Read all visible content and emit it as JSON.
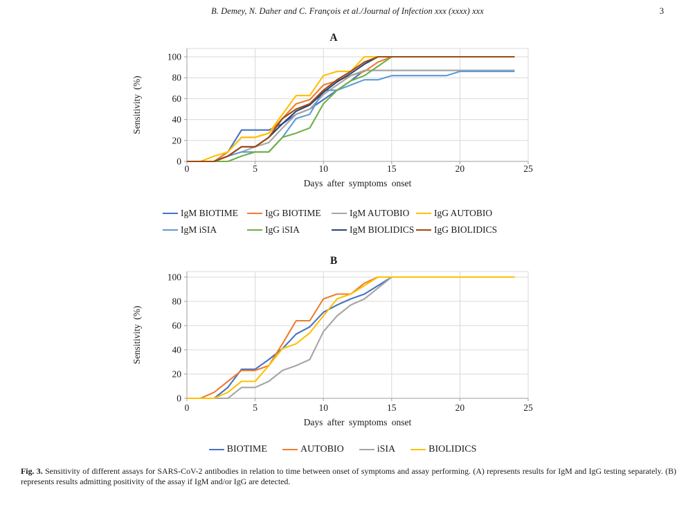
{
  "header": {
    "running_title": "B. Demey, N. Daher and C. François et al./Journal of Infection xxx (xxxx) xxx",
    "page_number": "3"
  },
  "caption": {
    "label": "Fig. 3.",
    "text": "Sensitivity of different assays for SARS-CoV-2 antibodies in relation to time between onset of symptoms and assay performing. (A) represents results for IgM and IgG testing separately. (B) represents results admitting positivity of the assay if IgM and/or IgG are detected."
  },
  "style_colors": {
    "gridline": "#D9D9D9",
    "axis": "#9E9E9E",
    "text": "#1a1a1a"
  },
  "chart_data": [
    {
      "id": "A",
      "type": "line",
      "title": "A",
      "xlabel": "Days after symptoms onset",
      "ylabel": "Sensitivity (%)",
      "xlim": [
        0,
        25
      ],
      "ylim": [
        0,
        100
      ],
      "xticks": [
        0,
        5,
        10,
        15,
        20,
        25
      ],
      "yticks": [
        0,
        20,
        40,
        60,
        80,
        100
      ],
      "grid": true,
      "legend_position": "bottom",
      "x": [
        0,
        1,
        2,
        3,
        4,
        5,
        6,
        7,
        8,
        9,
        10,
        11,
        12,
        13,
        14,
        15,
        16,
        17,
        18,
        19,
        20,
        21,
        22,
        23,
        24
      ],
      "series": [
        {
          "name": "IgM BIOTIME",
          "color": "#4472C4",
          "values": [
            0,
            0,
            0,
            9,
            30,
            30,
            30,
            36,
            45,
            50,
            59,
            68,
            77,
            87,
            87,
            87,
            87,
            87,
            87,
            87,
            87,
            87,
            87,
            87,
            87
          ]
        },
        {
          "name": "IgG BIOTIME",
          "color": "#ED7D31",
          "values": [
            0,
            0,
            0,
            9,
            23,
            23,
            27,
            41,
            55,
            59,
            73,
            77,
            82,
            86,
            95,
            100,
            100,
            100,
            100,
            100,
            100,
            100,
            100,
            100,
            100
          ]
        },
        {
          "name": "IgM AUTOBIO",
          "color": "#A5A5A5",
          "values": [
            0,
            0,
            0,
            5,
            9,
            14,
            18,
            32,
            45,
            50,
            64,
            73,
            82,
            87,
            87,
            87,
            87,
            87,
            87,
            87,
            87,
            87,
            87,
            87,
            87
          ]
        },
        {
          "name": "IgG AUTOBIO",
          "color": "#FFC000",
          "values": [
            0,
            0,
            5,
            9,
            23,
            23,
            27,
            45,
            63,
            63,
            82,
            86,
            86,
            100,
            100,
            100,
            100,
            100,
            100,
            100,
            100,
            100,
            100,
            100,
            100
          ]
        },
        {
          "name": "IgM iSIA",
          "color": "#5B9BD5",
          "values": [
            0,
            0,
            0,
            5,
            9,
            9,
            9,
            23,
            41,
            45,
            68,
            68,
            73,
            78,
            78,
            82,
            82,
            82,
            82,
            82,
            86,
            86,
            86,
            86,
            86
          ]
        },
        {
          "name": "IgG iSIA",
          "color": "#70AD47",
          "values": [
            0,
            0,
            0,
            0,
            5,
            9,
            9,
            23,
            27,
            32,
            55,
            68,
            77,
            82,
            91,
            100,
            100,
            100,
            100,
            100,
            100,
            100,
            100,
            100,
            100
          ]
        },
        {
          "name": "IgM BIOLIDICS",
          "color": "#264478",
          "values": [
            0,
            0,
            0,
            5,
            14,
            14,
            23,
            36,
            48,
            54,
            66,
            76,
            84,
            93,
            100,
            100,
            100,
            100,
            100,
            100,
            100,
            100,
            100,
            100,
            100
          ]
        },
        {
          "name": "IgG BIOLIDICS",
          "color": "#9E480E",
          "values": [
            0,
            0,
            0,
            5,
            14,
            14,
            23,
            41,
            50,
            55,
            68,
            78,
            86,
            95,
            100,
            100,
            100,
            100,
            100,
            100,
            100,
            100,
            100,
            100,
            100
          ]
        }
      ]
    },
    {
      "id": "B",
      "type": "line",
      "title": "B",
      "xlabel": "Days after symptoms onset",
      "ylabel": "Sensitivity (%)",
      "xlim": [
        0,
        25
      ],
      "ylim": [
        0,
        100
      ],
      "xticks": [
        0,
        5,
        10,
        15,
        20,
        25
      ],
      "yticks": [
        0,
        20,
        40,
        60,
        80,
        100
      ],
      "grid": true,
      "legend_position": "bottom",
      "x": [
        0,
        1,
        2,
        3,
        4,
        5,
        6,
        7,
        8,
        9,
        10,
        11,
        12,
        13,
        14,
        15,
        16,
        17,
        18,
        19,
        20,
        21,
        22,
        23,
        24
      ],
      "series": [
        {
          "name": "BIOTIME",
          "color": "#4472C4",
          "values": [
            0,
            0,
            0,
            9,
            24,
            24,
            32,
            41,
            53,
            59,
            71,
            77,
            82,
            86,
            93,
            100,
            100,
            100,
            100,
            100,
            100,
            100,
            100,
            100,
            100
          ]
        },
        {
          "name": "AUTOBIO",
          "color": "#ED7D31",
          "values": [
            0,
            0,
            5,
            14,
            23,
            23,
            27,
            45,
            64,
            64,
            82,
            86,
            86,
            95,
            100,
            100,
            100,
            100,
            100,
            100,
            100,
            100,
            100,
            100,
            100
          ]
        },
        {
          "name": "iSIA",
          "color": "#A5A5A5",
          "values": [
            0,
            0,
            0,
            0,
            9,
            9,
            14,
            23,
            27,
            32,
            55,
            68,
            77,
            82,
            91,
            100,
            100,
            100,
            100,
            100,
            100,
            100,
            100,
            100,
            100
          ]
        },
        {
          "name": "BIOLIDICS",
          "color": "#FFC000",
          "values": [
            0,
            0,
            0,
            5,
            14,
            14,
            27,
            41,
            45,
            54,
            68,
            82,
            86,
            93,
            100,
            100,
            100,
            100,
            100,
            100,
            100,
            100,
            100,
            100,
            100
          ]
        }
      ]
    }
  ]
}
